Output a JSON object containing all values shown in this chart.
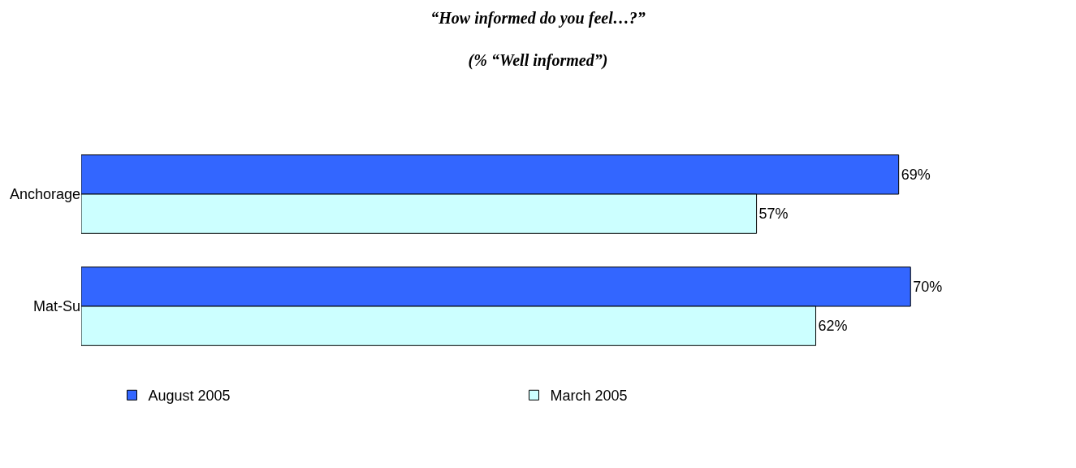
{
  "chart_data": {
    "type": "bar",
    "orientation": "horizontal",
    "title": "“How informed do you feel…?”",
    "subtitle": "(% “Well informed”)",
    "categories": [
      "Anchorage",
      "Mat-Su"
    ],
    "series": [
      {
        "name": "August 2005",
        "color": "#3366ff",
        "values": [
          69,
          70
        ],
        "value_labels": [
          "69%",
          "70%"
        ]
      },
      {
        "name": "March 2005",
        "color": "#ccffff",
        "values": [
          57,
          62
        ],
        "value_labels": [
          "57%",
          "62%"
        ]
      }
    ],
    "legend": "bottom",
    "tick_labels": "y"
  }
}
